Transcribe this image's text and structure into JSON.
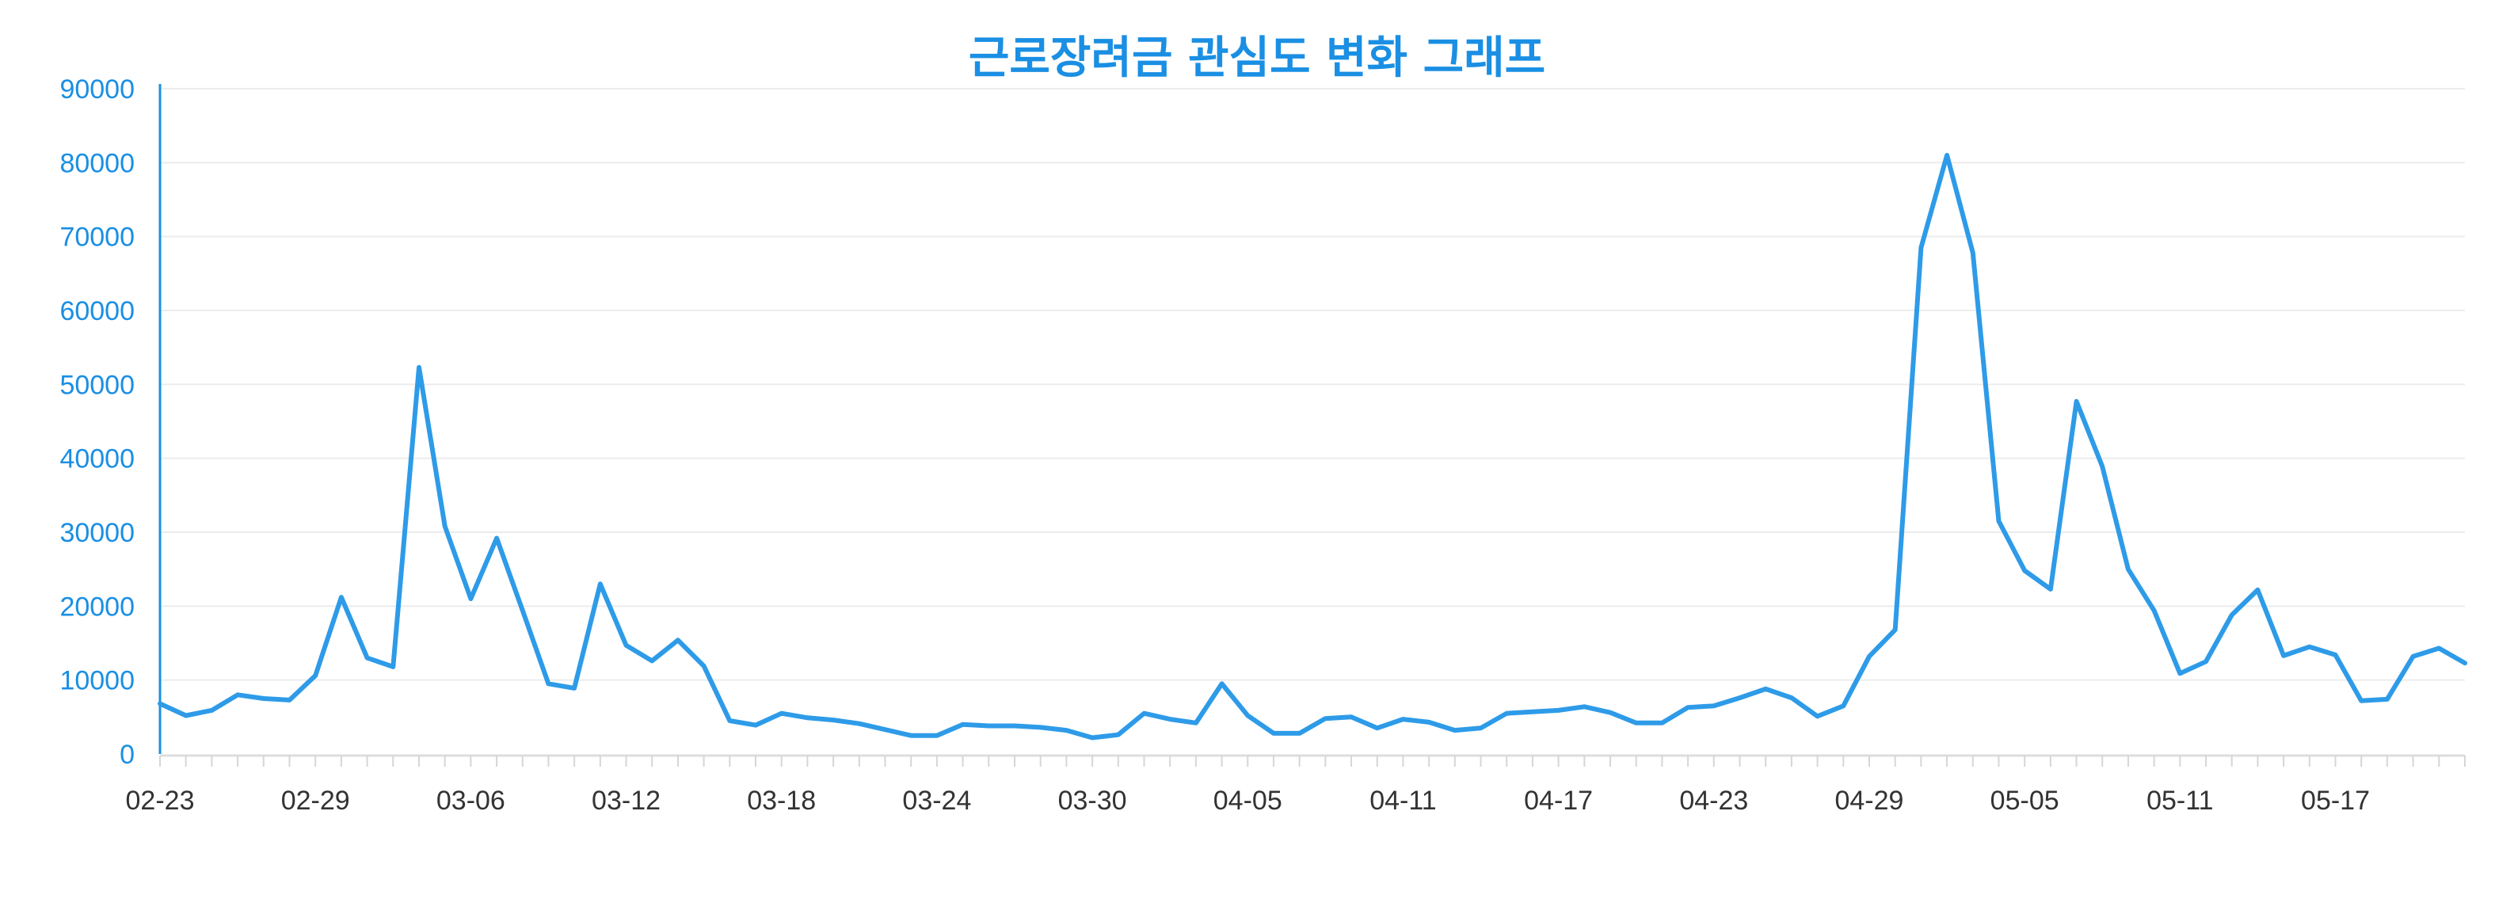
{
  "chart_data": {
    "type": "line",
    "title": "근로장려금 관심도 변화 그래프",
    "xlabel": "",
    "ylabel": "",
    "ylim": [
      0,
      90000
    ],
    "yticks": [
      "0",
      "10000",
      "20000",
      "30000",
      "40000",
      "50000",
      "60000",
      "70000",
      "80000",
      "90000"
    ],
    "x_tick_labels": [
      {
        "label": "02-23",
        "index": 0,
        "color": "#333333"
      },
      {
        "label": "02-29",
        "index": 6,
        "color": "#333333"
      },
      {
        "label": "03-06",
        "index": 12,
        "color": "#333333"
      },
      {
        "label": "03-12",
        "index": 18,
        "color": "#333333"
      },
      {
        "label": "03-18",
        "index": 24,
        "color": "#333333"
      },
      {
        "label": "03-24",
        "index": 30,
        "color": "#e05a3a"
      },
      {
        "label": "03-30",
        "index": 36,
        "color": "#1a8fe3"
      },
      {
        "label": "04-05",
        "index": 42,
        "color": "#333333"
      },
      {
        "label": "04-11",
        "index": 48,
        "color": "#333333"
      },
      {
        "label": "04-17",
        "index": 54,
        "color": "#333333"
      },
      {
        "label": "04-23",
        "index": 60,
        "color": "#333333"
      },
      {
        "label": "04-29",
        "index": 66,
        "color": "#333333"
      },
      {
        "label": "05-05",
        "index": 72,
        "color": "#e05a3a"
      },
      {
        "label": "05-11",
        "index": 78,
        "color": "#1a8fe3"
      },
      {
        "label": "05-17",
        "index": 84,
        "color": "#333333"
      }
    ],
    "grid": true,
    "legend": "none",
    "line_color": "#2e9be8",
    "series": [
      {
        "values": [
          6800,
          5200,
          5900,
          8000,
          7500,
          7300,
          10600,
          21200,
          13000,
          11800,
          52300,
          30800,
          21000,
          29200,
          19400,
          9500,
          8900,
          23000,
          14700,
          12600,
          15400,
          11900,
          4500,
          3900,
          5500,
          4900,
          4600,
          4100,
          3300,
          2500,
          2500,
          4000,
          3800,
          3800,
          3600,
          3200,
          2200,
          2600,
          5500,
          4700,
          4200,
          9500,
          5200,
          2800,
          2800,
          4800,
          5000,
          3500,
          4700,
          4300,
          3200,
          3500,
          5500,
          5700,
          5900,
          6400,
          5600,
          4200,
          4200,
          6300,
          6500,
          7600,
          8800,
          7600,
          5100,
          6500,
          13200,
          16800,
          68500,
          81000,
          67800,
          31500,
          24800,
          22300,
          47700,
          38900,
          25000,
          19400,
          10900,
          12500,
          18800,
          22200,
          13300,
          14500,
          13400,
          7200,
          7400,
          13200,
          14300,
          12300
        ]
      }
    ]
  }
}
